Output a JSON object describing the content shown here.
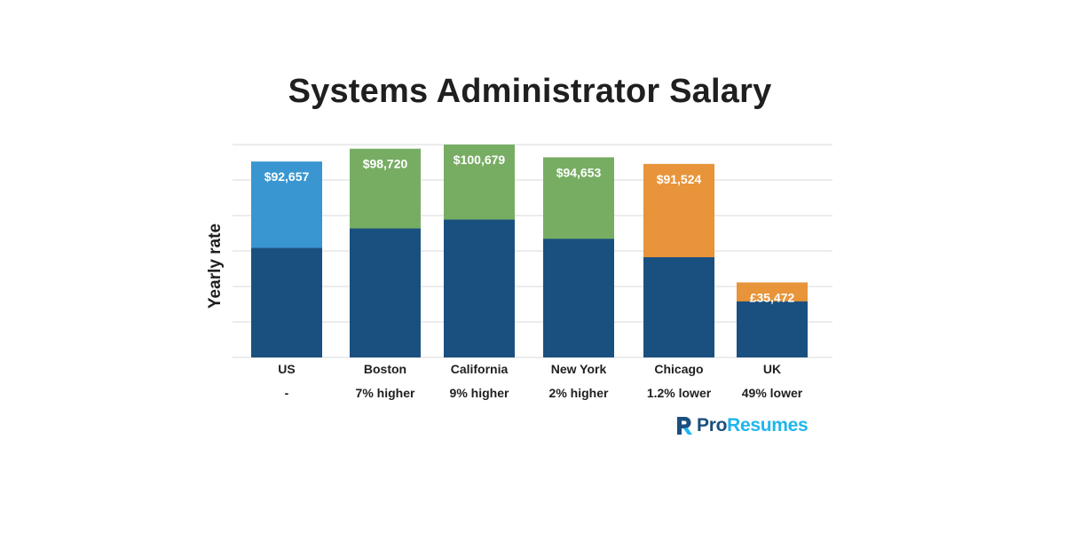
{
  "chart_data": {
    "type": "bar",
    "title": "Systems Administrator Salary",
    "ylabel": "Yearly rate",
    "xlabel": "",
    "ylim": [
      0,
      100679
    ],
    "grid": true,
    "categories": [
      "US",
      "Boston",
      "California",
      "New York",
      "Chicago",
      "UK"
    ],
    "sublabels": [
      "-",
      "7% higher",
      "9% higher",
      "2% higher",
      "1.2% lower",
      "49% lower"
    ],
    "bars": [
      {
        "category": "US",
        "value": 92657,
        "label": "$92,657",
        "base_value": 51800,
        "top_color": "#3a96d0"
      },
      {
        "category": "Boston",
        "value": 98720,
        "label": "$98,720",
        "base_value": 61000,
        "top_color": "#77ad63"
      },
      {
        "category": "California",
        "value": 100679,
        "label": "$100,679",
        "base_value": 65200,
        "top_color": "#77ad63"
      },
      {
        "category": "New York",
        "value": 94653,
        "label": "$94,653",
        "base_value": 56100,
        "top_color": "#77ad63"
      },
      {
        "category": "Chicago",
        "value": 91524,
        "label": "$91,524",
        "base_value": 47400,
        "top_color": "#e8943a"
      },
      {
        "category": "UK",
        "value": 35472,
        "label": "£35,472",
        "base_value": 26500,
        "top_color": "#e8943a"
      }
    ],
    "colors": {
      "base": "#1a507f",
      "grid": "#d9d9d9",
      "text": "#1f1f1f",
      "value_label": "#ffffff"
    }
  },
  "logo": {
    "part1": "Pro",
    "part2": "Resumes",
    "colors": {
      "pro": "#1b4f7d",
      "resumes": "#1fb6ee"
    }
  }
}
